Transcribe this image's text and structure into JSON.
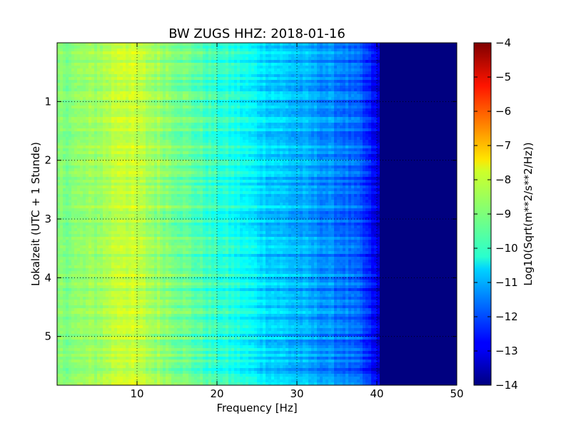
{
  "chart_data": {
    "type": "heatmap",
    "title": "BW ZUGS HHZ: 2018-01-16",
    "xlabel": "Frequency [Hz]",
    "ylabel": "Lokalzeit (UTC + 1 Stunde)",
    "xlim": [
      0,
      50
    ],
    "ylim": [
      5.83,
      0
    ],
    "xticks": [
      10,
      20,
      30,
      40,
      50
    ],
    "xtick_labels": [
      "10",
      "20",
      "30",
      "40",
      "50"
    ],
    "yticks": [
      1,
      2,
      3,
      4,
      5
    ],
    "ytick_labels": [
      "1",
      "2",
      "3",
      "4",
      "5"
    ],
    "grid": true,
    "colormap": "jet",
    "colorbar": {
      "label": "Log10(Sqrt(m**2/s**2/Hz))",
      "range": [
        -14,
        -4
      ],
      "ticks": [
        -4,
        -5,
        -6,
        -7,
        -8,
        -9,
        -10,
        -11,
        -12,
        -13,
        -14
      ],
      "tick_labels": [
        "−4",
        "−5",
        "−6",
        "−7",
        "−8",
        "−9",
        "−10",
        "−11",
        "−12",
        "−13",
        "−14"
      ]
    },
    "frequency_profile": {
      "frequency_hz": [
        0,
        2,
        4,
        6,
        8,
        10,
        12,
        14,
        16,
        18,
        20,
        22,
        24,
        26,
        28,
        30,
        32,
        34,
        36,
        38,
        40,
        41,
        45,
        50
      ],
      "log10_value": [
        -9.0,
        -8.9,
        -8.8,
        -8.6,
        -8.2,
        -8.4,
        -8.7,
        -8.9,
        -9.2,
        -9.5,
        -9.8,
        -10.0,
        -10.3,
        -10.6,
        -10.8,
        -11.0,
        -11.2,
        -11.4,
        -11.6,
        -12.0,
        -13.0,
        -14.0,
        -14.0,
        -14.0
      ]
    }
  }
}
